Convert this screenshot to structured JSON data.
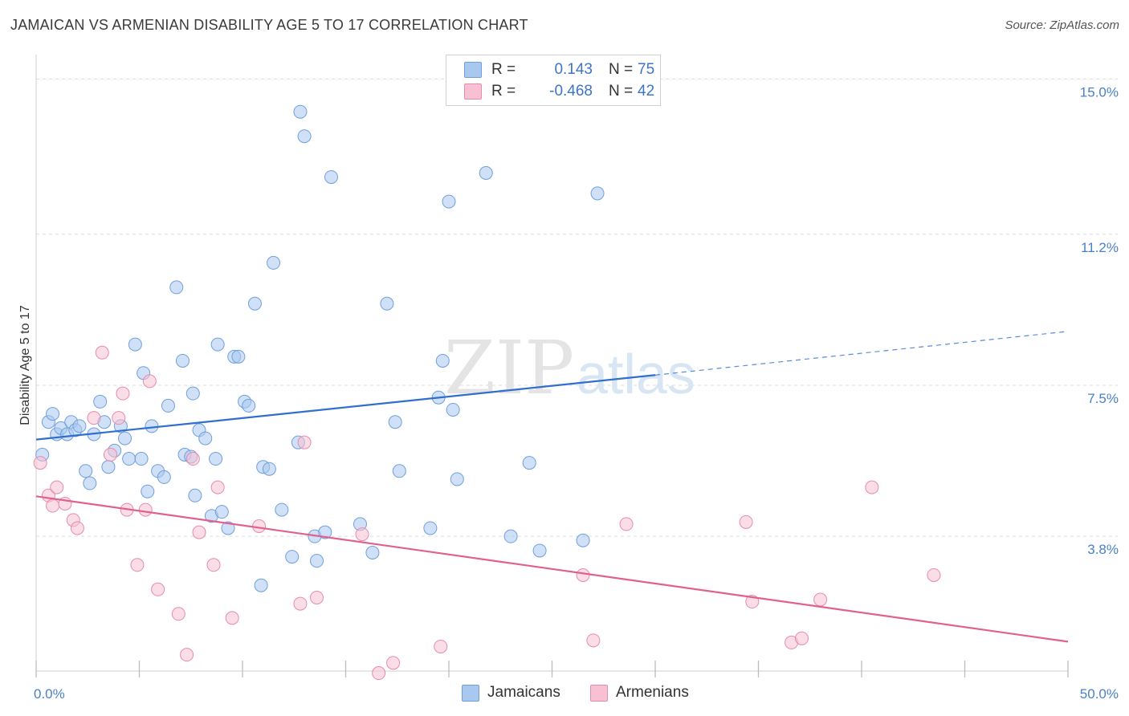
{
  "header": {
    "title": "JAMAICAN VS ARMENIAN DISABILITY AGE 5 TO 17 CORRELATION CHART",
    "source": "Source: ZipAtlas.com"
  },
  "watermark": {
    "part1": "ZIP",
    "part2": "atlas"
  },
  "stats_legend": [
    {
      "r_label": "R =",
      "r_value": "0.143",
      "n_label": "N =",
      "n_value": "75",
      "color": "#a9c8f0",
      "border": "#6f9fdc"
    },
    {
      "r_label": "R =",
      "r_value": "-0.468",
      "n_label": "N =",
      "n_value": "42",
      "color": "#f7c1d3",
      "border": "#e68bab"
    }
  ],
  "bottom_legend": [
    {
      "label": "Jamaicans",
      "color": "#a9c8f0",
      "border": "#6f9fdc"
    },
    {
      "label": "Armenians",
      "color": "#f7c1d3",
      "border": "#e68bab"
    }
  ],
  "chart_data": {
    "type": "scatter",
    "title": "JAMAICAN VS ARMENIAN DISABILITY AGE 5 TO 17 CORRELATION CHART",
    "xlabel": "",
    "ylabel": "Disability Age 5 to 17",
    "xlim": [
      0,
      50
    ],
    "ylim": [
      0.5,
      15.6
    ],
    "x_tick_labels": [
      "0.0%",
      "50.0%"
    ],
    "y_ticks": [
      3.8,
      7.5,
      11.2,
      15.0
    ],
    "y_tick_labels": [
      "3.8%",
      "7.5%",
      "11.2%",
      "15.0%"
    ],
    "grid": "horizontal dashed",
    "legend_position": "top-center",
    "colors": {
      "jamaicans": "#2f6fce",
      "armenians": "#e0608e",
      "jamaicans_fill": "#a9c8f0",
      "armenians_fill": "#f7c1d3"
    },
    "series": [
      {
        "name": "Jamaicans",
        "points": [
          [
            0.3,
            5.8
          ],
          [
            0.6,
            6.6
          ],
          [
            0.8,
            6.8
          ],
          [
            1.0,
            6.3
          ],
          [
            1.2,
            6.45
          ],
          [
            1.5,
            6.3
          ],
          [
            1.7,
            6.6
          ],
          [
            1.9,
            6.4
          ],
          [
            2.1,
            6.5
          ],
          [
            2.4,
            5.4
          ],
          [
            2.6,
            5.1
          ],
          [
            2.8,
            6.3
          ],
          [
            3.1,
            7.1
          ],
          [
            3.3,
            6.6
          ],
          [
            3.5,
            5.5
          ],
          [
            3.8,
            5.9
          ],
          [
            4.1,
            6.5
          ],
          [
            4.3,
            6.2
          ],
          [
            4.5,
            5.7
          ],
          [
            4.8,
            8.5
          ],
          [
            5.1,
            5.7
          ],
          [
            5.2,
            7.8
          ],
          [
            5.4,
            4.9
          ],
          [
            5.6,
            6.5
          ],
          [
            5.9,
            5.4
          ],
          [
            6.2,
            5.25
          ],
          [
            6.4,
            7.0
          ],
          [
            6.8,
            9.9
          ],
          [
            7.1,
            8.1
          ],
          [
            7.2,
            5.8
          ],
          [
            7.5,
            5.75
          ],
          [
            7.6,
            7.3
          ],
          [
            7.7,
            4.8
          ],
          [
            7.9,
            6.4
          ],
          [
            8.2,
            6.2
          ],
          [
            8.5,
            4.3
          ],
          [
            8.7,
            5.7
          ],
          [
            8.8,
            8.5
          ],
          [
            9.0,
            4.4
          ],
          [
            9.3,
            4.0
          ],
          [
            9.6,
            8.2
          ],
          [
            9.8,
            8.2
          ],
          [
            10.1,
            7.1
          ],
          [
            10.3,
            7.0
          ],
          [
            10.6,
            9.5
          ],
          [
            10.9,
            2.6
          ],
          [
            11.0,
            5.5
          ],
          [
            11.3,
            5.45
          ],
          [
            11.5,
            10.5
          ],
          [
            11.9,
            4.45
          ],
          [
            12.4,
            3.3
          ],
          [
            12.7,
            6.1
          ],
          [
            12.8,
            14.2
          ],
          [
            13.0,
            13.6
          ],
          [
            13.5,
            3.8
          ],
          [
            13.6,
            3.2
          ],
          [
            14.0,
            3.9
          ],
          [
            14.3,
            12.6
          ],
          [
            15.7,
            4.1
          ],
          [
            16.3,
            3.4
          ],
          [
            17.0,
            9.5
          ],
          [
            17.4,
            6.6
          ],
          [
            17.6,
            5.4
          ],
          [
            19.1,
            4.0
          ],
          [
            19.5,
            7.2
          ],
          [
            19.7,
            8.1
          ],
          [
            20.0,
            12.0
          ],
          [
            20.2,
            6.9
          ],
          [
            20.4,
            5.2
          ],
          [
            21.8,
            12.7
          ],
          [
            23.0,
            3.8
          ],
          [
            23.9,
            5.6
          ],
          [
            24.4,
            3.45
          ],
          [
            26.5,
            3.7
          ],
          [
            27.2,
            12.2
          ]
        ]
      },
      {
        "name": "Armenians",
        "points": [
          [
            0.2,
            5.6
          ],
          [
            0.6,
            4.8
          ],
          [
            0.8,
            4.55
          ],
          [
            1.0,
            5.0
          ],
          [
            1.4,
            4.6
          ],
          [
            1.8,
            4.2
          ],
          [
            2.0,
            4.0
          ],
          [
            2.8,
            6.7
          ],
          [
            3.2,
            8.3
          ],
          [
            3.6,
            5.8
          ],
          [
            4.0,
            6.7
          ],
          [
            4.2,
            7.3
          ],
          [
            4.4,
            4.45
          ],
          [
            4.9,
            3.1
          ],
          [
            5.3,
            4.45
          ],
          [
            5.5,
            7.6
          ],
          [
            5.9,
            2.5
          ],
          [
            6.9,
            1.9
          ],
          [
            7.3,
            0.9
          ],
          [
            7.6,
            5.7
          ],
          [
            7.9,
            3.9
          ],
          [
            8.6,
            3.1
          ],
          [
            8.8,
            5.0
          ],
          [
            9.5,
            1.8
          ],
          [
            10.8,
            4.05
          ],
          [
            12.8,
            2.15
          ],
          [
            13.0,
            6.1
          ],
          [
            13.6,
            2.3
          ],
          [
            15.8,
            3.85
          ],
          [
            16.6,
            0.45
          ],
          [
            17.3,
            0.7
          ],
          [
            19.6,
            1.1
          ],
          [
            26.5,
            2.85
          ],
          [
            27.0,
            1.25
          ],
          [
            28.6,
            4.1
          ],
          [
            34.4,
            4.15
          ],
          [
            34.7,
            2.2
          ],
          [
            36.6,
            1.2
          ],
          [
            37.1,
            1.3
          ],
          [
            38.0,
            2.25
          ],
          [
            40.5,
            5.0
          ],
          [
            43.5,
            2.85
          ]
        ]
      }
    ],
    "trend_lines": [
      {
        "series": "Jamaicans",
        "solid": [
          [
            0,
            6.17
          ],
          [
            30,
            7.75
          ]
        ],
        "dashed": [
          [
            30,
            7.75
          ],
          [
            50,
            8.82
          ]
        ]
      },
      {
        "series": "Armenians",
        "solid": [
          [
            0,
            4.78
          ],
          [
            50,
            1.22
          ]
        ]
      }
    ]
  }
}
